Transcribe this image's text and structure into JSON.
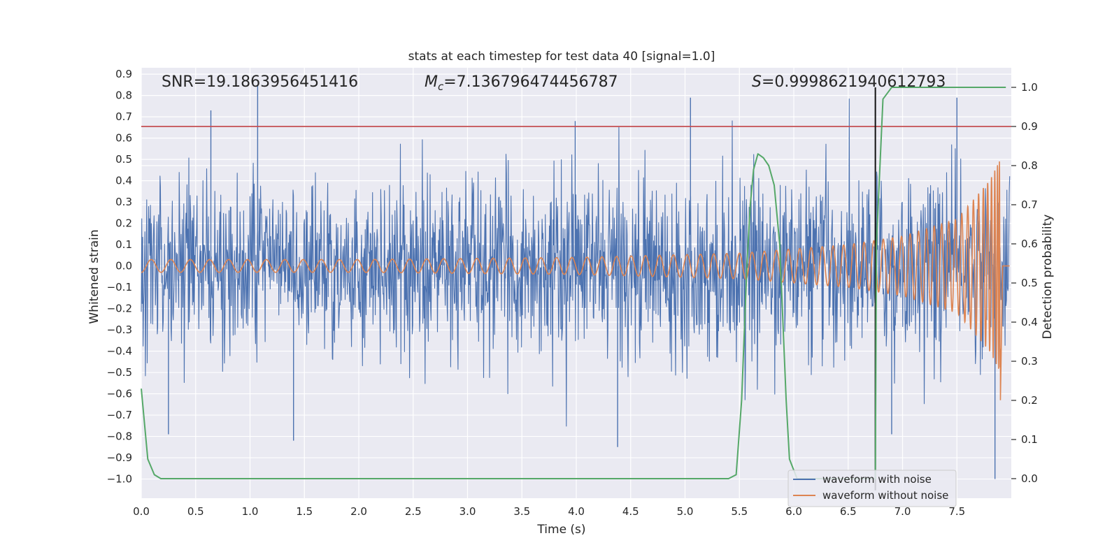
{
  "chart_data": {
    "type": "line",
    "title": "stats at each timestep for test data 40 [signal=1.0]",
    "xlabel": "Time (s)",
    "ylabel": "Whitened strain",
    "y2label": "Detection probability",
    "xlim": [
      0.0,
      8.0
    ],
    "ylim": [
      -1.09,
      0.93
    ],
    "y2lim": [
      -0.05,
      1.05
    ],
    "xticks": [
      "0.0",
      "0.5",
      "1.0",
      "1.5",
      "2.0",
      "2.5",
      "3.0",
      "3.5",
      "4.0",
      "4.5",
      "5.0",
      "5.5",
      "6.0",
      "6.5",
      "7.0",
      "7.5"
    ],
    "xtick_values": [
      0,
      0.5,
      1,
      1.5,
      2,
      2.5,
      3,
      3.5,
      4,
      4.5,
      5,
      5.5,
      6,
      6.5,
      7,
      7.5
    ],
    "yticks": [
      "0.9",
      "0.8",
      "0.7",
      "0.6",
      "0.5",
      "0.4",
      "0.3",
      "0.2",
      "0.1",
      "0.0",
      "−0.1",
      "−0.2",
      "−0.3",
      "−0.4",
      "−0.5",
      "−0.6",
      "−0.7",
      "−0.8",
      "−0.9",
      "−1.0"
    ],
    "ytick_values": [
      0.9,
      0.8,
      0.7,
      0.6,
      0.5,
      0.4,
      0.3,
      0.2,
      0.1,
      0,
      -0.1,
      -0.2,
      -0.3,
      -0.4,
      -0.5,
      -0.6,
      -0.7,
      -0.8,
      -0.9,
      -1.0
    ],
    "y2ticks": [
      "1.0",
      "0.9",
      "0.8",
      "0.7",
      "0.6",
      "0.5",
      "0.4",
      "0.3",
      "0.2",
      "0.1",
      "0.0"
    ],
    "y2tick_values": [
      1.0,
      0.9,
      0.8,
      0.7,
      0.6,
      0.5,
      0.4,
      0.3,
      0.2,
      0.1,
      0.0
    ],
    "annotations": {
      "snr": "SNR=19.1863956451416",
      "mc_symbol": "M",
      "mc_sub": "c",
      "mc_value": "=7.136796474456787",
      "s_symbol": "S",
      "s_value": "=0.9998621940612793"
    },
    "threshold": {
      "y2": 0.9,
      "color": "#c44e52"
    },
    "event_time": 6.75,
    "series": [
      {
        "name": "waveform with noise",
        "color": "#4c72b0",
        "description": "whitened strain with noise, approx. range -1.0 to 0.85",
        "approx_range": [
          -1.0,
          0.85
        ]
      },
      {
        "name": "waveform without noise",
        "color": "#dd8452",
        "description": "chirp signal, amplitude growing from 0.03 to 0.5, ending at 7.9 s",
        "approx_envelope": {
          "t": [
            0.0,
            2.0,
            4.0,
            5.5,
            6.5,
            7.0,
            7.5,
            7.8,
            7.9
          ],
          "amp": [
            0.03,
            0.03,
            0.04,
            0.06,
            0.1,
            0.14,
            0.22,
            0.4,
            0.5
          ]
        },
        "merger_time": 7.9
      },
      {
        "name": "detection probability",
        "color": "#55a868",
        "axis": "y2",
        "x": [
          0.0,
          0.06,
          0.12,
          0.18,
          0.3,
          5.4,
          5.47,
          5.52,
          5.57,
          5.6,
          5.63,
          5.67,
          5.72,
          5.77,
          5.82,
          5.87,
          5.93,
          5.96,
          6.03,
          6.75,
          6.76,
          6.82,
          6.9,
          7.0,
          7.5,
          7.95
        ],
        "y": [
          0.23,
          0.05,
          0.01,
          0.0,
          0.0,
          0.0,
          0.01,
          0.2,
          0.55,
          0.7,
          0.79,
          0.83,
          0.82,
          0.8,
          0.75,
          0.6,
          0.2,
          0.05,
          0.0,
          0.0,
          0.6,
          0.97,
          1.0,
          1.0,
          1.0,
          1.0
        ]
      }
    ],
    "legend": {
      "placement": "lower-right",
      "entries": [
        "waveform with noise",
        "waveform without noise"
      ]
    }
  }
}
